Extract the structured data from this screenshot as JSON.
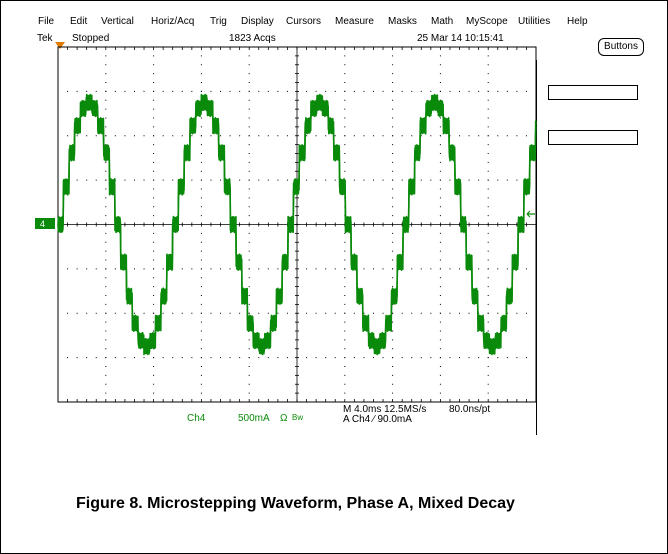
{
  "menu": [
    "File",
    "Edit",
    "Vertical",
    "Horiz/Acq",
    "Trig",
    "Display",
    "Cursors",
    "Measure",
    "Masks",
    "Math",
    "MyScope",
    "Utilities",
    "Help"
  ],
  "status": {
    "brand": "Tek",
    "run_state": "Stopped",
    "acquisitions": "1823 Acqs",
    "datetime": "25 Mar 14 10:15:41"
  },
  "buttons_label": "Buttons",
  "channel_marker": "4",
  "readouts": {
    "channel": "Ch4",
    "scale": "500mA",
    "ohm": "Ω",
    "bw": "Bw",
    "timebase": "M 4.0ms 12.5MS/s",
    "resolution": "80.0ns/pt",
    "trigger": "A  Ch4  ⁄  90.0mA"
  },
  "caption": "Figure 8. Microstepping Waveform, Phase A, Mixed Decay",
  "colors": {
    "trace": "#0a8a0a",
    "grid": "#000000",
    "trigger_marker": "#e07a00"
  },
  "waveform": {
    "periods_on_screen": 4.15,
    "amplitude_divs": 2.75,
    "steps_per_period": 20,
    "ripple_divs": 0.18
  }
}
